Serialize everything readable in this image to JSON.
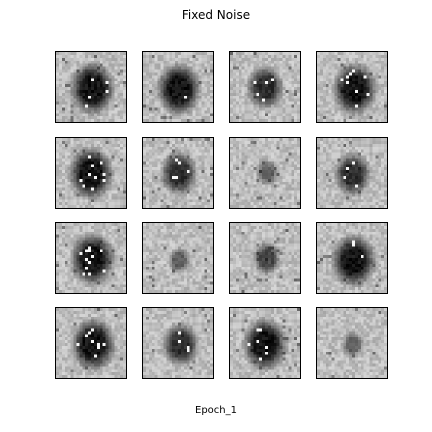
{
  "title": "Fixed Noise",
  "caption": "Epoch_1",
  "samples": [
    {
      "row": 1,
      "col": 1,
      "blob": "large-dark"
    },
    {
      "row": 1,
      "col": 2,
      "blob": "large-dark"
    },
    {
      "row": 1,
      "col": 3,
      "blob": "medium-dark"
    },
    {
      "row": 1,
      "col": 4,
      "blob": "large-dark"
    },
    {
      "row": 2,
      "col": 1,
      "blob": "large-dark"
    },
    {
      "row": 2,
      "col": 2,
      "blob": "medium-dark"
    },
    {
      "row": 2,
      "col": 3,
      "blob": "small-faint"
    },
    {
      "row": 2,
      "col": 4,
      "blob": "medium-dark"
    },
    {
      "row": 3,
      "col": 1,
      "blob": "large-dark"
    },
    {
      "row": 3,
      "col": 2,
      "blob": "small-faint"
    },
    {
      "row": 3,
      "col": 3,
      "blob": "small-medium"
    },
    {
      "row": 3,
      "col": 4,
      "blob": "large-dark"
    },
    {
      "row": 4,
      "col": 1,
      "blob": "large-dark"
    },
    {
      "row": 4,
      "col": 2,
      "blob": "medium-dark"
    },
    {
      "row": 4,
      "col": 3,
      "blob": "large-dark"
    },
    {
      "row": 4,
      "col": 4,
      "blob": "small-faint"
    }
  ]
}
